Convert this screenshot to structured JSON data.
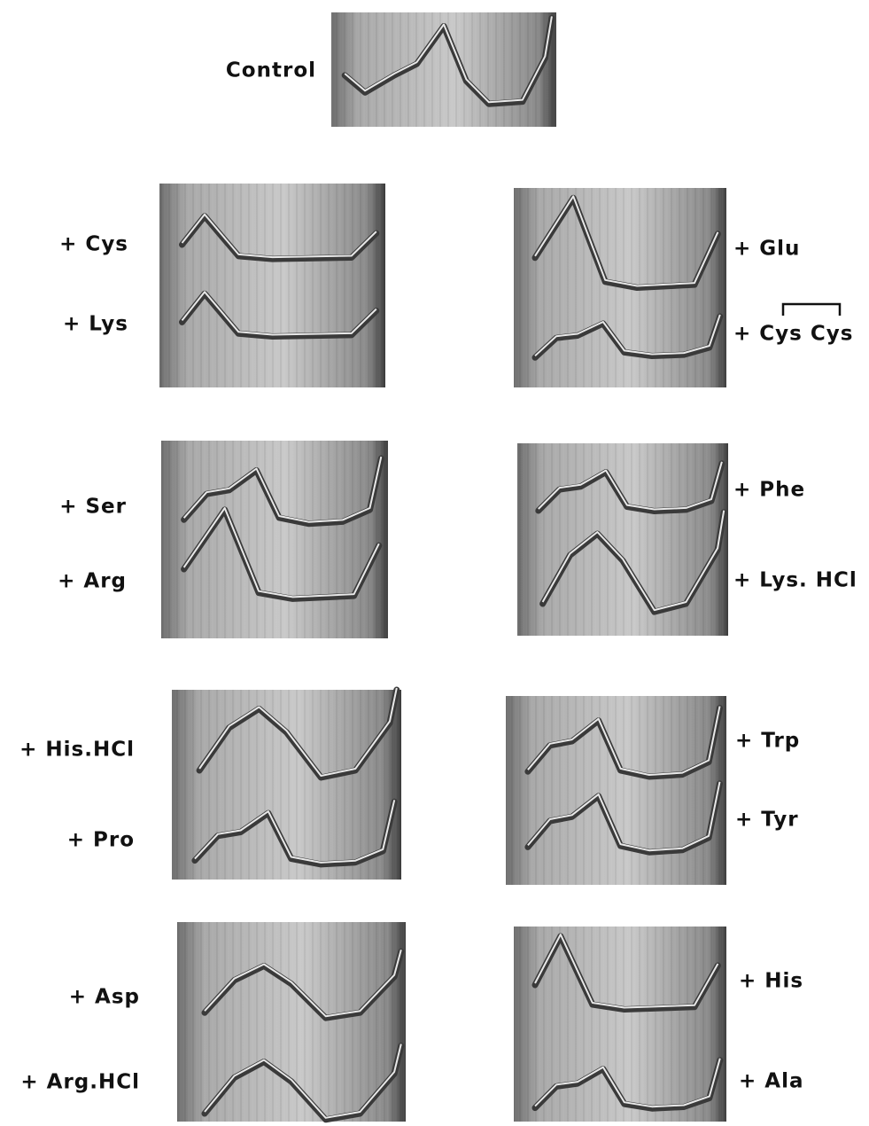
{
  "control": "Control",
  "panels": [
    {
      "labels": [
        "+ Cys",
        "+ Lys"
      ]
    },
    {
      "labels": [
        "+ Glu",
        "+ Cys Cys"
      ]
    },
    {
      "labels": [
        "+ Ser",
        "+ Arg"
      ]
    },
    {
      "labels": [
        "+ Phe",
        "+ Lys. HCl"
      ]
    },
    {
      "labels": [
        "+ His.HCl",
        "+ Pro"
      ]
    },
    {
      "labels": [
        "+ Trp",
        "+ Tyr"
      ]
    },
    {
      "labels": [
        "+ Asp",
        "+ Arg.HCl"
      ]
    },
    {
      "labels": [
        "+ His",
        "+ Ala"
      ]
    }
  ]
}
